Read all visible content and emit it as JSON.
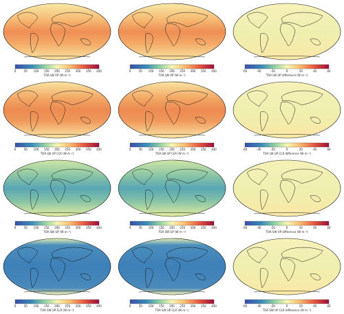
{
  "panels": [
    {
      "colorbar": {
        "label": "TOA LW UP (W m⁻²)",
        "xlim": [
          0,
          400
        ],
        "xticks": [
          0,
          50,
          100,
          150,
          200,
          250,
          300,
          350,
          400
        ]
      }
    },
    {
      "colorbar": {
        "label": "TOA LW UP (W m⁻²)",
        "xlim": [
          0,
          400
        ],
        "xticks": [
          0,
          50,
          100,
          150,
          200,
          250,
          300,
          350,
          400
        ]
      }
    },
    {
      "colorbar": {
        "label": "TOA LW UP difference (W m⁻²)",
        "xlim": [
          -60,
          60
        ],
        "xticks": [
          -60,
          -40,
          -20,
          0,
          20,
          40,
          60
        ]
      }
    },
    {
      "colorbar": {
        "label": "TOA LW UP CLR (W m⁻²)",
        "xlim": [
          0,
          400
        ],
        "xticks": [
          0,
          50,
          100,
          150,
          200,
          250,
          300,
          350,
          400
        ]
      }
    },
    {
      "colorbar": {
        "label": "TOA LW UP CLR (W m⁻²)",
        "xlim": [
          0,
          400
        ],
        "xticks": [
          0,
          50,
          100,
          150,
          200,
          250,
          300,
          350,
          400
        ]
      }
    },
    {
      "colorbar": {
        "label": "TOA LW UP CLR difference (W m⁻²)",
        "xlim": [
          -60,
          60
        ],
        "xticks": [
          -60,
          -40,
          -20,
          0,
          20,
          40,
          60
        ]
      }
    },
    {
      "colorbar": {
        "label": "TOA SW UP (W m⁻²)",
        "xlim": [
          0,
          400
        ],
        "xticks": [
          0,
          50,
          100,
          150,
          200,
          250,
          300,
          350,
          400
        ]
      }
    },
    {
      "colorbar": {
        "label": "TOA SW UP (W m⁻²)",
        "xlim": [
          0,
          400
        ],
        "xticks": [
          0,
          50,
          100,
          150,
          200,
          250,
          300,
          350,
          400
        ]
      }
    },
    {
      "colorbar": {
        "label": "TOA SW UP difference (W m⁻²)",
        "xlim": [
          -60,
          60
        ],
        "xticks": [
          -60,
          -40,
          -20,
          0,
          20,
          40,
          60
        ]
      }
    },
    {
      "colorbar": {
        "label": "TOA SW UP CLR (W m⁻²)",
        "xlim": [
          0,
          400
        ],
        "xticks": [
          0,
          50,
          100,
          150,
          200,
          250,
          300,
          350,
          400
        ]
      }
    },
    {
      "colorbar": {
        "label": "TOA SW UP CLR (W m⁻²)",
        "xlim": [
          0,
          400
        ],
        "xticks": [
          0,
          50,
          100,
          150,
          200,
          250,
          300,
          350,
          400
        ]
      }
    },
    {
      "colorbar": {
        "label": "TOA SW UP CLR difference (W m⁻²)",
        "xlim": [
          -60,
          60
        ],
        "xticks": [
          -60,
          -40,
          -20,
          0,
          20,
          40,
          60
        ]
      }
    }
  ]
}
